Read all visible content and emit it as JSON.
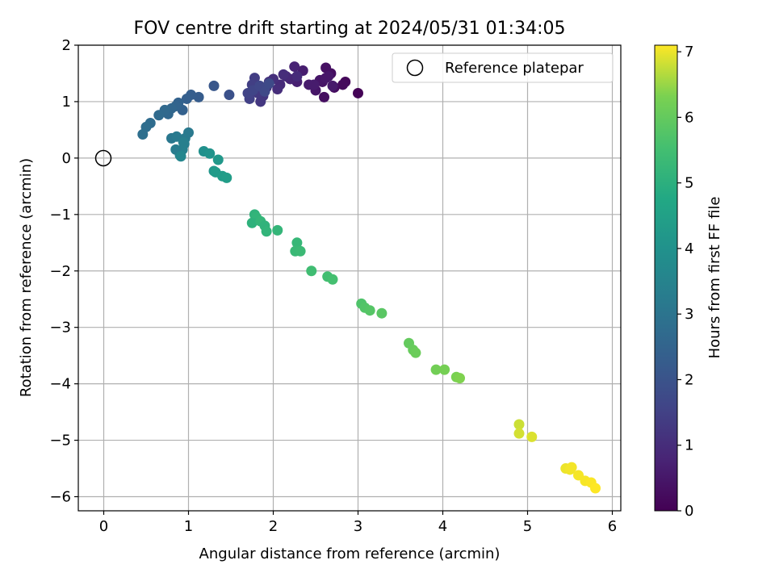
{
  "chart_data": {
    "type": "scatter",
    "title": "FOV centre drift starting at 2024/05/31 01:34:05",
    "xlabel": "Angular distance from reference (arcmin)",
    "ylabel": "Rotation from reference (arcmin)",
    "xlim": [
      -0.3,
      6.1
    ],
    "ylim": [
      -6.25,
      2.0
    ],
    "xticks": [
      0,
      1,
      2,
      3,
      4,
      5,
      6
    ],
    "xtick_labels": [
      "0",
      "1",
      "2",
      "3",
      "4",
      "5",
      "6"
    ],
    "yticks": [
      2,
      1,
      0,
      -1,
      -2,
      -3,
      -4,
      -5,
      -6
    ],
    "ytick_labels": [
      "2",
      "1",
      "0",
      "−1",
      "−2",
      "−3",
      "−4",
      "−5",
      "−6"
    ],
    "grid": true,
    "legend": {
      "label": "Reference platepar",
      "placement": "top-right",
      "marker": "open-circle"
    },
    "reference_point": {
      "x": 0,
      "y": 0
    },
    "colorbar": {
      "label": "Hours from first FF file",
      "colormap": "viridis",
      "min": 0,
      "max": 7.1,
      "ticks": [
        0,
        1,
        2,
        3,
        4,
        5,
        6,
        7
      ],
      "tick_labels": [
        "0",
        "1",
        "2",
        "3",
        "4",
        "5",
        "6",
        "7"
      ]
    },
    "series": [
      {
        "x": [
          3.0,
          2.85,
          2.82,
          2.72,
          2.68,
          2.62,
          2.58,
          2.55,
          2.65,
          2.7,
          2.6,
          2.5,
          2.42,
          2.35,
          2.28,
          2.25,
          2.2,
          2.15,
          2.08,
          2.05,
          2.0,
          1.95,
          1.92,
          1.88,
          1.85,
          1.82,
          1.8,
          1.78,
          1.75,
          1.72,
          1.7,
          1.76,
          1.84,
          1.9,
          1.95,
          2.12,
          2.28,
          2.48,
          2.62,
          1.48,
          1.3,
          1.12,
          1.03,
          0.98,
          0.93,
          0.88,
          0.85,
          0.8,
          0.76,
          0.72,
          0.65,
          0.55,
          0.5,
          0.46,
          1.0,
          0.96,
          0.95,
          0.93,
          0.9,
          0.85,
          0.8,
          0.86,
          0.91,
          0.94,
          1.18,
          1.25,
          1.3,
          1.35,
          1.32,
          1.4,
          1.45,
          1.78,
          1.8,
          1.75,
          1.85,
          1.9,
          1.92,
          2.05,
          2.28,
          2.26,
          2.32,
          2.45,
          2.64,
          2.7,
          3.04,
          3.08,
          3.14,
          3.28,
          3.6,
          3.65,
          3.68,
          3.92,
          4.02,
          4.16,
          4.2,
          4.9,
          4.9,
          5.05,
          5.45,
          5.5,
          5.52,
          5.6,
          5.68,
          5.75,
          5.8
        ],
        "y": [
          1.15,
          1.35,
          1.3,
          1.25,
          1.5,
          1.6,
          1.35,
          1.38,
          1.45,
          1.28,
          1.08,
          1.2,
          1.3,
          1.55,
          1.35,
          1.62,
          1.4,
          1.45,
          1.3,
          1.22,
          1.4,
          1.35,
          1.25,
          1.1,
          1.0,
          1.15,
          1.25,
          1.42,
          1.3,
          1.05,
          1.15,
          1.2,
          1.28,
          1.18,
          1.32,
          1.48,
          1.45,
          1.3,
          1.42,
          1.12,
          1.28,
          1.08,
          1.12,
          1.05,
          0.85,
          0.98,
          0.92,
          0.88,
          0.78,
          0.85,
          0.76,
          0.62,
          0.55,
          0.42,
          0.45,
          0.35,
          0.25,
          0.15,
          0.05,
          0.15,
          0.35,
          0.38,
          0.03,
          0.28,
          0.12,
          0.08,
          -0.23,
          -0.03,
          -0.25,
          -0.32,
          -0.35,
          -1.0,
          -1.05,
          -1.15,
          -1.12,
          -1.2,
          -1.3,
          -1.28,
          -1.5,
          -1.65,
          -1.65,
          -2.0,
          -2.1,
          -2.15,
          -2.58,
          -2.65,
          -2.7,
          -2.75,
          -3.28,
          -3.4,
          -3.45,
          -3.75,
          -3.75,
          -3.88,
          -3.9,
          -4.72,
          -4.88,
          -4.94,
          -5.5,
          -5.52,
          -5.48,
          -5.62,
          -5.72,
          -5.75,
          -5.85
        ],
        "c": [
          0.05,
          0.15,
          0.2,
          0.25,
          0.3,
          0.35,
          0.4,
          0.45,
          0.5,
          0.55,
          0.28,
          0.45,
          0.6,
          0.65,
          0.7,
          0.75,
          0.8,
          0.9,
          0.95,
          1.0,
          1.05,
          1.1,
          1.15,
          1.2,
          1.25,
          1.3,
          1.35,
          1.4,
          1.45,
          1.5,
          1.55,
          1.6,
          1.65,
          1.7,
          1.75,
          1.0,
          0.95,
          0.6,
          0.5,
          1.95,
          2.1,
          2.25,
          2.3,
          2.35,
          2.4,
          2.45,
          2.5,
          2.55,
          2.6,
          2.65,
          2.7,
          2.75,
          2.8,
          2.85,
          3.15,
          3.2,
          3.3,
          3.4,
          3.5,
          3.25,
          3.1,
          3.2,
          3.6,
          3.35,
          3.95,
          4.05,
          4.15,
          4.2,
          4.3,
          4.35,
          4.4,
          5.1,
          5.15,
          5.05,
          5.2,
          5.1,
          5.15,
          5.2,
          5.25,
          5.3,
          5.35,
          5.45,
          5.5,
          5.55,
          5.7,
          5.75,
          5.8,
          5.85,
          6.0,
          6.05,
          6.1,
          6.2,
          6.25,
          6.3,
          6.35,
          6.8,
          6.85,
          6.9,
          7.0,
          7.02,
          7.04,
          7.05,
          7.06,
          7.08,
          7.1
        ]
      }
    ]
  }
}
